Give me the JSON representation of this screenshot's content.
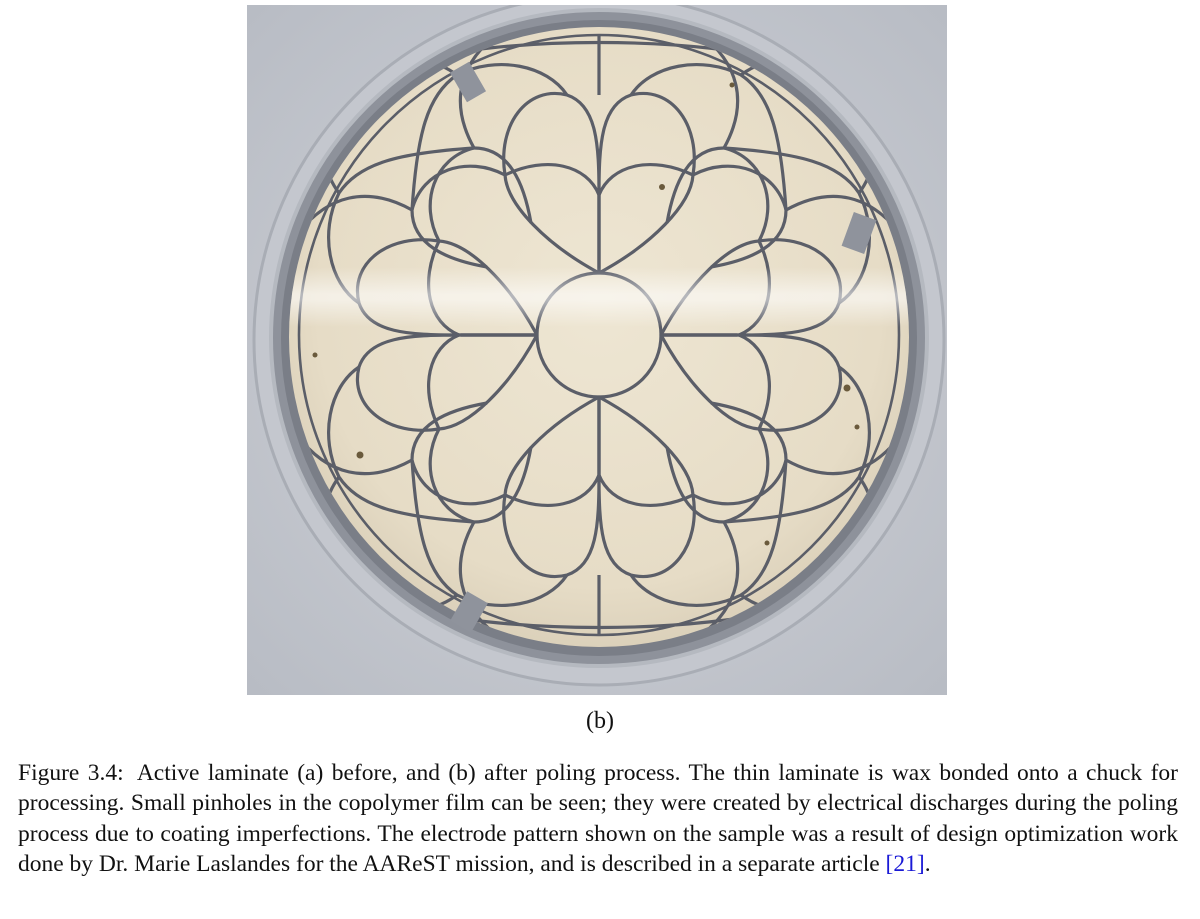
{
  "figure": {
    "subfigure_label": "(b)",
    "photo_icon": "laminate-photo",
    "colors": {
      "background": "#c9ccd3",
      "chuck_ring": "#b9bdc4",
      "laminate": "#e9e0cd",
      "electrode_lines": "#5b5e68"
    }
  },
  "caption": {
    "label": "Figure 3.4:",
    "text_before_cite": "Active laminate (a) before, and (b) after poling process. The thin laminate is wax bonded onto a chuck for processing. Small pinholes in the copolymer film can be seen; they were created by electrical discharges during the poling process due to coating imperfections. The electrode pattern shown on the sample was a result of design optimization work done by Dr. Marie Laslandes for the AAReST mission, and is described in a separate article ",
    "citation": "[21]",
    "text_after_cite": "."
  }
}
